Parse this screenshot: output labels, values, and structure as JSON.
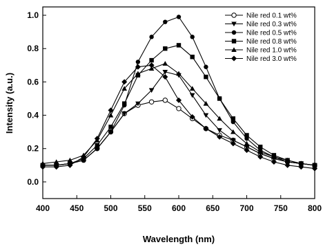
{
  "chart_data": {
    "type": "line",
    "xlabel": "Wavelength (nm)",
    "ylabel": "Intensity (a.u.)",
    "xlim": [
      400,
      800
    ],
    "ylim": [
      -0.1,
      1.05
    ],
    "xticks": [
      400,
      450,
      500,
      550,
      600,
      650,
      700,
      750,
      800
    ],
    "yticks": [
      0.0,
      0.2,
      0.4,
      0.6,
      0.8,
      1.0
    ],
    "grid": false,
    "legend_position": "top-right",
    "x": [
      400,
      420,
      440,
      460,
      480,
      500,
      520,
      540,
      560,
      580,
      600,
      620,
      640,
      660,
      680,
      700,
      720,
      740,
      760,
      780,
      800
    ],
    "series": [
      {
        "name": "Nile red 0.1 wt%",
        "marker": "open-circle",
        "values": [
          0.1,
          0.1,
          0.11,
          0.13,
          0.2,
          0.3,
          0.41,
          0.46,
          0.48,
          0.49,
          0.44,
          0.38,
          0.32,
          0.28,
          0.25,
          0.21,
          0.17,
          0.14,
          0.12,
          0.11,
          0.1
        ]
      },
      {
        "name": "Nile red 0.3 wt%",
        "marker": "filled-triangle-down",
        "values": [
          0.1,
          0.1,
          0.11,
          0.13,
          0.2,
          0.3,
          0.41,
          0.47,
          0.55,
          0.66,
          0.64,
          0.52,
          0.4,
          0.31,
          0.25,
          0.21,
          0.17,
          0.14,
          0.12,
          0.11,
          0.1
        ]
      },
      {
        "name": "Nile red 0.5 wt%",
        "marker": "filled-circle",
        "values": [
          0.1,
          0.1,
          0.11,
          0.13,
          0.2,
          0.3,
          0.46,
          0.72,
          0.87,
          0.96,
          0.99,
          0.87,
          0.69,
          0.5,
          0.36,
          0.26,
          0.19,
          0.15,
          0.12,
          0.11,
          0.1
        ]
      },
      {
        "name": "Nile red 0.8 wt%",
        "marker": "filled-square",
        "values": [
          0.1,
          0.1,
          0.11,
          0.14,
          0.22,
          0.33,
          0.47,
          0.64,
          0.73,
          0.8,
          0.82,
          0.75,
          0.63,
          0.5,
          0.38,
          0.28,
          0.21,
          0.16,
          0.13,
          0.11,
          0.1
        ]
      },
      {
        "name": "Nile red 1.0 wt%",
        "marker": "filled-triangle-up",
        "values": [
          0.11,
          0.12,
          0.13,
          0.16,
          0.25,
          0.4,
          0.56,
          0.65,
          0.68,
          0.71,
          0.65,
          0.56,
          0.47,
          0.38,
          0.3,
          0.23,
          0.18,
          0.15,
          0.13,
          0.11,
          0.1
        ]
      },
      {
        "name": "Nile red 3.0 wt%",
        "marker": "filled-diamond",
        "values": [
          0.09,
          0.09,
          0.1,
          0.15,
          0.26,
          0.43,
          0.6,
          0.69,
          0.7,
          0.63,
          0.49,
          0.39,
          0.32,
          0.27,
          0.23,
          0.19,
          0.15,
          0.12,
          0.1,
          0.09,
          0.08
        ]
      }
    ]
  }
}
